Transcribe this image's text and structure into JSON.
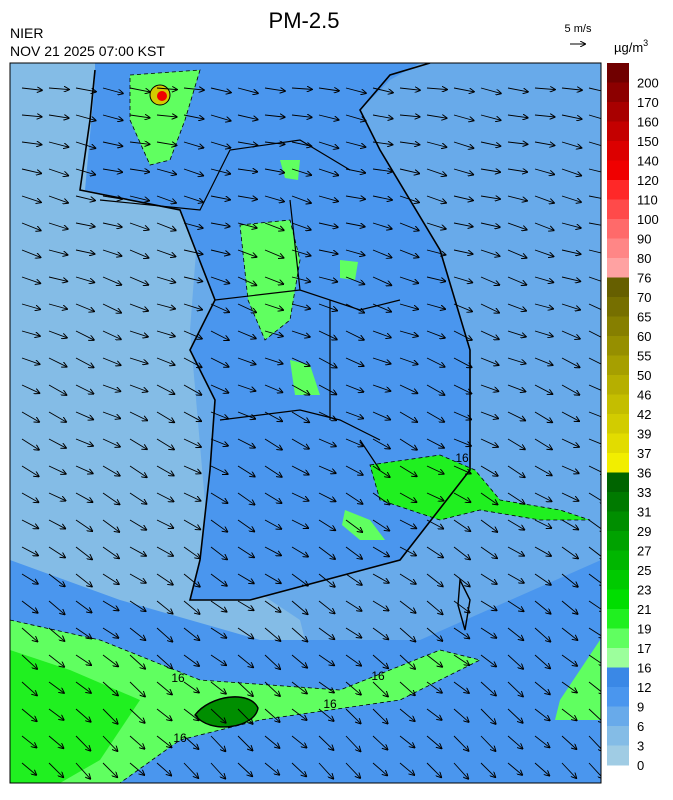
{
  "title": "PM-2.5",
  "agency": "NIER",
  "timestamp": "NOV 21 2025 07:00 KST",
  "wind_reference": "5 m/s",
  "unit": {
    "base": "µg/m",
    "sup": "3"
  },
  "colorbar": {
    "colors": [
      "#700000",
      "#8c0000",
      "#a80000",
      "#c40000",
      "#dc0000",
      "#f00000",
      "#ff2828",
      "#ff4a4a",
      "#ff6a6a",
      "#ff8686",
      "#ffa2a2",
      "#665f00",
      "#766f00",
      "#867f00",
      "#968f00",
      "#a69f00",
      "#b6af00",
      "#c4be00",
      "#d2cc00",
      "#e2dc00",
      "#f2ee00",
      "#006400",
      "#007a00",
      "#008e00",
      "#00a200",
      "#00b600",
      "#00ca00",
      "#00de00",
      "#20f020",
      "#60ff60",
      "#9cff9c",
      "#3a88e6",
      "#4a96ee",
      "#68aaea",
      "#84bce6",
      "#a0cce4"
    ],
    "labels": [
      200,
      170,
      160,
      150,
      140,
      120,
      110,
      100,
      90,
      80,
      76,
      70,
      65,
      60,
      55,
      50,
      46,
      42,
      39,
      37,
      36,
      33,
      31,
      29,
      27,
      25,
      23,
      21,
      19,
      17,
      16,
      12,
      9,
      6,
      3,
      0
    ]
  },
  "contour_labels": [
    "16",
    "16",
    "16",
    "16",
    "16"
  ]
}
